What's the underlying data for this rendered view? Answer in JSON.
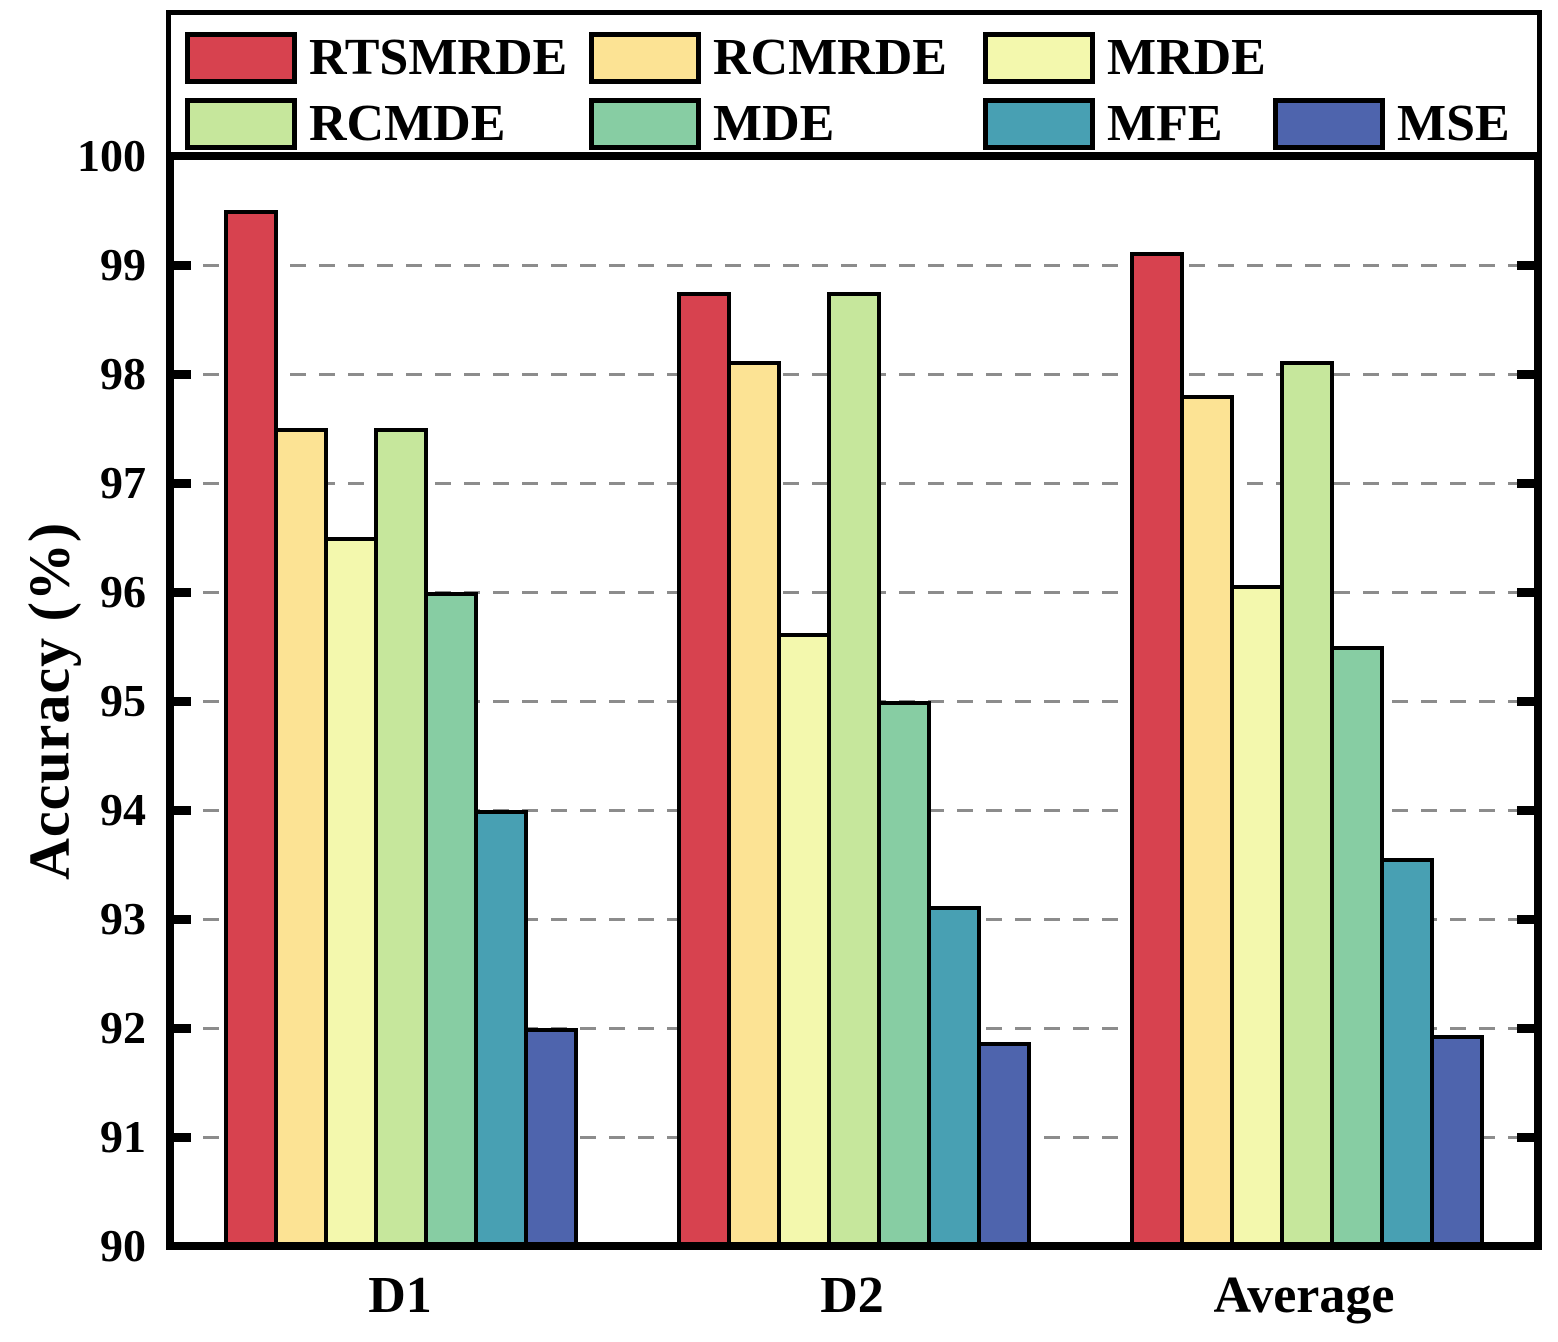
{
  "figure": {
    "background": "#ffffff"
  },
  "axes": {
    "y_label": "Accuracy (%)",
    "y_tick_labels": [
      "90",
      "91",
      "92",
      "93",
      "94",
      "95",
      "96",
      "97",
      "98",
      "99",
      "100"
    ],
    "x_tick_labels": [
      "D1",
      "D2",
      "Average"
    ]
  },
  "chart_data": {
    "type": "bar",
    "title": "",
    "xlabel": "",
    "ylabel": "Accuracy (%)",
    "ylim": [
      90,
      100
    ],
    "yticks": [
      90,
      91,
      92,
      93,
      94,
      95,
      96,
      97,
      98,
      99,
      100
    ],
    "grid": "horizontal-dashed",
    "grid_color": "#8c8c8c",
    "legend_position": "top",
    "categories": [
      "D1",
      "D2",
      "Average"
    ],
    "series": [
      {
        "name": "RTSMRDE",
        "color": "#D7424F",
        "values": [
          99.5,
          98.75,
          99.12
        ]
      },
      {
        "name": "RCMRDE",
        "color": "#FCE394",
        "values": [
          97.5,
          98.12,
          97.81
        ]
      },
      {
        "name": "MRDE",
        "color": "#F3F8AD",
        "values": [
          96.5,
          95.62,
          96.06
        ]
      },
      {
        "name": "RCMDE",
        "color": "#C6E79C",
        "values": [
          97.5,
          98.75,
          98.12
        ]
      },
      {
        "name": "MDE",
        "color": "#87CDA3",
        "values": [
          96.0,
          95.0,
          95.5
        ]
      },
      {
        "name": "MFE",
        "color": "#48A0B3",
        "values": [
          94.0,
          93.12,
          93.56
        ]
      },
      {
        "name": "MSE",
        "color": "#4E64AD",
        "values": [
          92.0,
          91.87,
          91.94
        ]
      }
    ]
  }
}
